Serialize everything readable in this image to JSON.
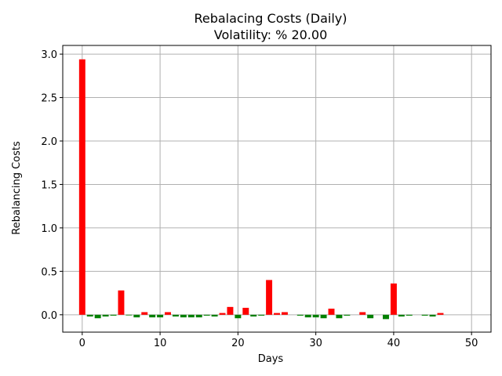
{
  "chart_data": {
    "type": "bar",
    "title": "Rebalacing Costs (Daily)",
    "subtitle": "Volatility: % 20.00",
    "xlabel": "Days",
    "ylabel": "Rebalancing Costs",
    "xlim": [
      -2.5,
      52.5
    ],
    "ylim": [
      -0.2,
      3.1
    ],
    "xticks": [
      0,
      10,
      20,
      30,
      40,
      50
    ],
    "yticks": [
      0.0,
      0.5,
      1.0,
      1.5,
      2.0,
      2.5,
      3.0
    ],
    "ytick_labels": [
      "0.0",
      "0.5",
      "1.0",
      "1.5",
      "2.0",
      "2.5",
      "3.0"
    ],
    "grid": true,
    "positive_color": "#ff0000",
    "negative_color": "#008000",
    "x": [
      0,
      1,
      2,
      3,
      4,
      5,
      6,
      7,
      8,
      9,
      10,
      11,
      12,
      13,
      14,
      15,
      16,
      17,
      18,
      19,
      20,
      21,
      22,
      23,
      24,
      25,
      26,
      27,
      28,
      29,
      30,
      31,
      32,
      33,
      34,
      35,
      36,
      37,
      38,
      39,
      40,
      41,
      42,
      43,
      44,
      45,
      46,
      47,
      48,
      49,
      50
    ],
    "values": [
      2.94,
      -0.02,
      -0.04,
      -0.02,
      -0.01,
      0.28,
      -0.005,
      -0.03,
      0.03,
      -0.03,
      -0.03,
      0.03,
      -0.02,
      -0.03,
      -0.03,
      -0.03,
      -0.01,
      -0.02,
      0.02,
      0.09,
      -0.04,
      0.08,
      -0.02,
      -0.01,
      0.4,
      0.02,
      0.03,
      0.0,
      -0.01,
      -0.03,
      -0.03,
      -0.04,
      0.07,
      -0.04,
      -0.01,
      0.0,
      0.03,
      -0.04,
      0.0,
      -0.05,
      0.36,
      -0.02,
      -0.01,
      0.0,
      -0.01,
      -0.02,
      0.02,
      0.0,
      0.0,
      0.0,
      0.0
    ]
  }
}
